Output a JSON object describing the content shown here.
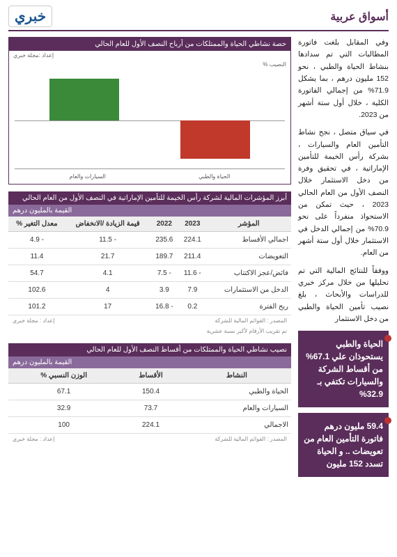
{
  "header": {
    "logo": "خبري",
    "section": "أسواق عربية"
  },
  "article": {
    "p1": "وفي المقابل بلغت فاتورة المطالبات التي تم سدادها بنشاط الحياة والطبي ، نحو 152 مليون درهم ، بما يشكل 71.9% من إجمالي الفاتورة الكلية ، خلال أول ستة أشهر من 2023.",
    "p2": "في سياق متصل ، نجح نشاط التأمين العام والسيارات ، بشركة رأس الخيمة للتأمين الإماراتية ، في تحقيق وفرة من دخل الاستثمار خلال النصف الأول من العام الحالي 2023 ، حيث تمكن من الاستحواذ منفرداً على نحو 70.9% من إجمالي الدخل في الاستثمار خلال أول ستة أشهر من العام.",
    "p3": "ووفقاً للنتائج المالية التي تم تحليلها من خلال مركز خبري للدراسات والأبحاث ، بلغ نصيب تأمين الحياة والطبي من دخل الاستثمار"
  },
  "highlights": {
    "h1": "الحياة والطبي يستحوذان علي 67.1% من أقساط الشركة والسيارات تكتفي بـ 32.9%",
    "h2": "59.4 مليون درهم فاتورة التأمين العام من تعويضات .. و الحياة تسدد 152 مليون"
  },
  "chart": {
    "title": "حصة نشاطي الحياة والممتلكات من أرباح النصف الأول للعام الحالي",
    "source": "إعداد :مجلة خبري",
    "series_label": "النصيب %",
    "labels": [
      "الحياة والطبي",
      "السيارات والعام"
    ],
    "bar1_color": "#3a8a3a",
    "bar2_color": "#c0392b"
  },
  "table1": {
    "title": "أبرز المؤشرات المالية لشركة رأس الخيمة للتأمين الإماراتية في النصف الأول من العام الحالي",
    "unit": "القيمة بالمليون درهم",
    "headers": [
      "المؤشر",
      "2023",
      "2022",
      "قيمة الزيادة /الانخفاض",
      "معدل التغير %"
    ],
    "rows": [
      [
        "اجمالي الأقساط",
        "224.1",
        "235.6",
        "11.5 -",
        "4.9 -"
      ],
      [
        "التعويضات",
        "211.4",
        "189.7",
        "21.7",
        "11.4"
      ],
      [
        "فائض/عجز الاكتتاب",
        "11.6 -",
        "7.5 -",
        "4.1",
        "54.7"
      ],
      [
        "الدخل من الاستثمارات",
        "7.9",
        "3.9",
        "4",
        "102.6"
      ],
      [
        "ربح الفترة",
        "0.2",
        "16.8 -",
        "17",
        "101.2"
      ]
    ],
    "src1": "المصدر : القوائم المالية للشركة",
    "src2": "تم تقريب الأرقام لأكبر نسبة عشرية",
    "credit": "إعداد : مجلة خبري"
  },
  "table2": {
    "title": "نصيب نشاطي الحياة والممتلكات من أقساط النصف الأول للعام الحالي",
    "unit": "القيمة بالمليون درهم",
    "headers": [
      "النشاط",
      "الأقساط",
      "الوزن النسبي %"
    ],
    "rows": [
      [
        "الحياة والطبي",
        "150.4",
        "67.1"
      ],
      [
        "السيارات والعام",
        "73.7",
        "32.9"
      ],
      [
        "الاجمالي",
        "224.1",
        "100"
      ]
    ],
    "src": "المصدر : القوائم المالية للشركة",
    "credit": "إعداد : مجلة خبري"
  }
}
